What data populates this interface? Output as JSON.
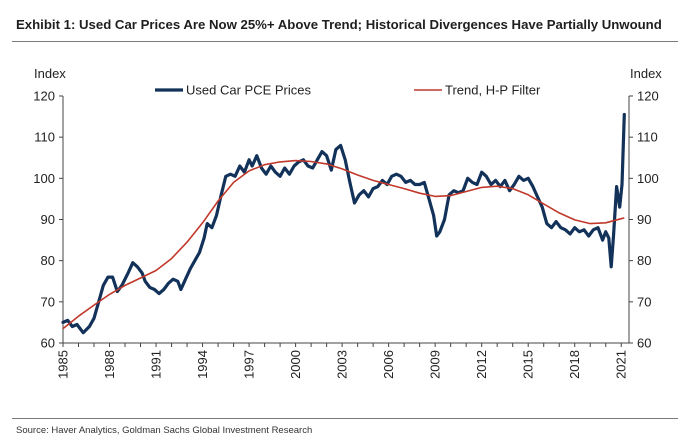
{
  "title": "Exhibit 1: Used Car Prices Are Now 25%+ Above Trend; Historical Divergences Have Partially Unwound",
  "source": "Source: Haver Analytics, Goldman Sachs Global Investment Research",
  "chart_data": {
    "type": "line",
    "title": "Exhibit 1: Used Car Prices Are Now 25%+ Above Trend; Historical Divergences Have Partially Unwound",
    "ylabel_left": "Index",
    "ylabel_right": "Index",
    "xlabel": "",
    "ylim": [
      60,
      120
    ],
    "xlim": [
      1985,
      2021.5
    ],
    "y_ticks": [
      60,
      70,
      80,
      90,
      100,
      110,
      120
    ],
    "x_tick_labels": [
      "1985",
      "1988",
      "1991",
      "1994",
      "1997",
      "2000",
      "2003",
      "2006",
      "2009",
      "2012",
      "2015",
      "2018",
      "2021"
    ],
    "grid": false,
    "legend_position": "top",
    "colors": {
      "used_car": "#13325a",
      "trend": "#c0392b"
    },
    "series": [
      {
        "name": "Used Car PCE Prices",
        "x": [
          1985.0,
          1985.3,
          1985.6,
          1985.9,
          1986.3,
          1986.7,
          1987.0,
          1987.3,
          1987.6,
          1987.9,
          1988.2,
          1988.5,
          1988.8,
          1989.2,
          1989.5,
          1989.8,
          1990.1,
          1990.3,
          1990.6,
          1990.9,
          1991.2,
          1991.5,
          1991.8,
          1992.1,
          1992.4,
          1992.6,
          1992.9,
          1993.2,
          1993.5,
          1993.8,
          1994.1,
          1994.3,
          1994.6,
          1994.9,
          1995.2,
          1995.5,
          1995.8,
          1996.1,
          1996.4,
          1996.7,
          1997.0,
          1997.2,
          1997.5,
          1997.8,
          1998.1,
          1998.4,
          1998.7,
          1999.0,
          1999.3,
          1999.6,
          1999.9,
          2000.2,
          2000.5,
          2000.8,
          2001.1,
          2001.4,
          2001.7,
          2002.0,
          2002.3,
          2002.6,
          2002.9,
          2003.2,
          2003.5,
          2003.8,
          2004.1,
          2004.4,
          2004.7,
          2005.0,
          2005.3,
          2005.6,
          2005.9,
          2006.2,
          2006.5,
          2006.8,
          2007.1,
          2007.4,
          2007.7,
          2008.0,
          2008.3,
          2008.6,
          2008.9,
          2009.1,
          2009.3,
          2009.6,
          2009.9,
          2010.2,
          2010.5,
          2010.8,
          2011.1,
          2011.4,
          2011.7,
          2012.0,
          2012.3,
          2012.6,
          2012.9,
          2013.2,
          2013.5,
          2013.8,
          2014.1,
          2014.4,
          2014.7,
          2015.0,
          2015.3,
          2015.6,
          2015.9,
          2016.2,
          2016.5,
          2016.8,
          2017.1,
          2017.4,
          2017.7,
          2018.0,
          2018.3,
          2018.6,
          2018.9,
          2019.2,
          2019.5,
          2019.8,
          2020.0,
          2020.2,
          2020.35,
          2020.5,
          2020.7,
          2020.9,
          2021.05,
          2021.2
        ],
        "values": [
          65.0,
          65.5,
          64.0,
          64.5,
          62.5,
          64.0,
          66.0,
          70.0,
          74.0,
          76.0,
          76.0,
          72.5,
          74.0,
          77.0,
          79.5,
          78.5,
          77.0,
          75.0,
          73.5,
          73.0,
          72.0,
          73.0,
          74.5,
          75.5,
          75.0,
          73.0,
          75.5,
          78.0,
          80.0,
          82.0,
          85.5,
          89.0,
          88.0,
          91.0,
          96.0,
          100.5,
          101.0,
          100.5,
          103.0,
          101.5,
          104.5,
          103.0,
          105.5,
          102.5,
          101.0,
          103.0,
          101.5,
          100.5,
          102.5,
          101.0,
          103.0,
          104.0,
          104.5,
          103.0,
          102.5,
          104.5,
          106.5,
          105.5,
          102.0,
          107.0,
          108.0,
          104.5,
          99.0,
          94.0,
          96.0,
          97.0,
          95.5,
          97.5,
          98.0,
          99.5,
          98.5,
          100.5,
          101.0,
          100.5,
          99.0,
          99.5,
          98.5,
          98.5,
          99.0,
          95.0,
          91.0,
          86.0,
          87.0,
          90.0,
          96.0,
          97.0,
          96.5,
          97.0,
          100.0,
          99.0,
          98.5,
          101.5,
          100.5,
          98.5,
          99.5,
          98.0,
          99.5,
          97.0,
          98.5,
          100.5,
          99.5,
          100.0,
          98.0,
          95.5,
          93.0,
          89.0,
          88.0,
          89.5,
          88.0,
          87.5,
          86.5,
          88.0,
          87.0,
          87.5,
          86.0,
          87.5,
          88.0,
          85.0,
          87.0,
          85.5,
          78.5,
          86.0,
          98.0,
          93.0,
          98.5,
          115.5
        ]
      },
      {
        "name": "Trend, H-P Filter",
        "x": [
          1985,
          1986,
          1987,
          1988,
          1989,
          1990,
          1991,
          1992,
          1993,
          1994,
          1995,
          1996,
          1997,
          1998,
          1999,
          2000,
          2001,
          2002,
          2003,
          2004,
          2005,
          2006,
          2007,
          2008,
          2009,
          2010,
          2011,
          2012,
          2013,
          2014,
          2015,
          2016,
          2017,
          2018,
          2019,
          2020,
          2021,
          2021.2
        ],
        "values": [
          63.5,
          66.5,
          69.2,
          71.8,
          74.0,
          75.8,
          77.6,
          80.5,
          84.5,
          89.2,
          94.5,
          99.0,
          101.8,
          103.3,
          104.0,
          104.3,
          104.1,
          103.5,
          102.3,
          100.8,
          99.5,
          98.5,
          97.5,
          96.4,
          95.6,
          95.8,
          96.8,
          97.8,
          98.1,
          97.5,
          96.0,
          93.8,
          91.6,
          89.9,
          89.0,
          89.2,
          90.2,
          90.4
        ]
      }
    ]
  }
}
